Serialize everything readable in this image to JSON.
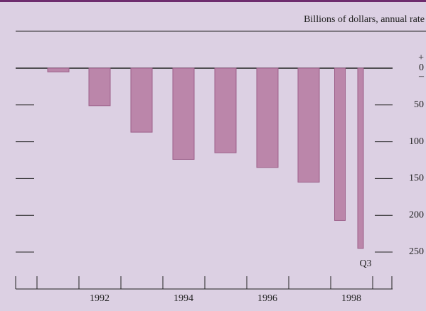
{
  "chart_data": {
    "type": "bar",
    "subtitle": "Billions of dollars, annual rate",
    "categories": [
      null,
      "1992",
      null,
      "1994",
      null,
      "1996",
      null,
      "1998",
      "Q3"
    ],
    "values": [
      -5,
      -51,
      -87,
      -124,
      -115,
      -135,
      -155,
      -207,
      -245
    ],
    "color": "#bb86aa",
    "ylim": [
      -250,
      0
    ],
    "yticks": [
      0,
      {
        "value": -50,
        "label": "50"
      },
      {
        "value": -100,
        "label": "100"
      },
      {
        "value": -150,
        "label": "150"
      },
      {
        "value": -200,
        "label": "200"
      },
      {
        "value": -250,
        "label": "250"
      }
    ],
    "annotations": [
      "+",
      "–"
    ]
  }
}
